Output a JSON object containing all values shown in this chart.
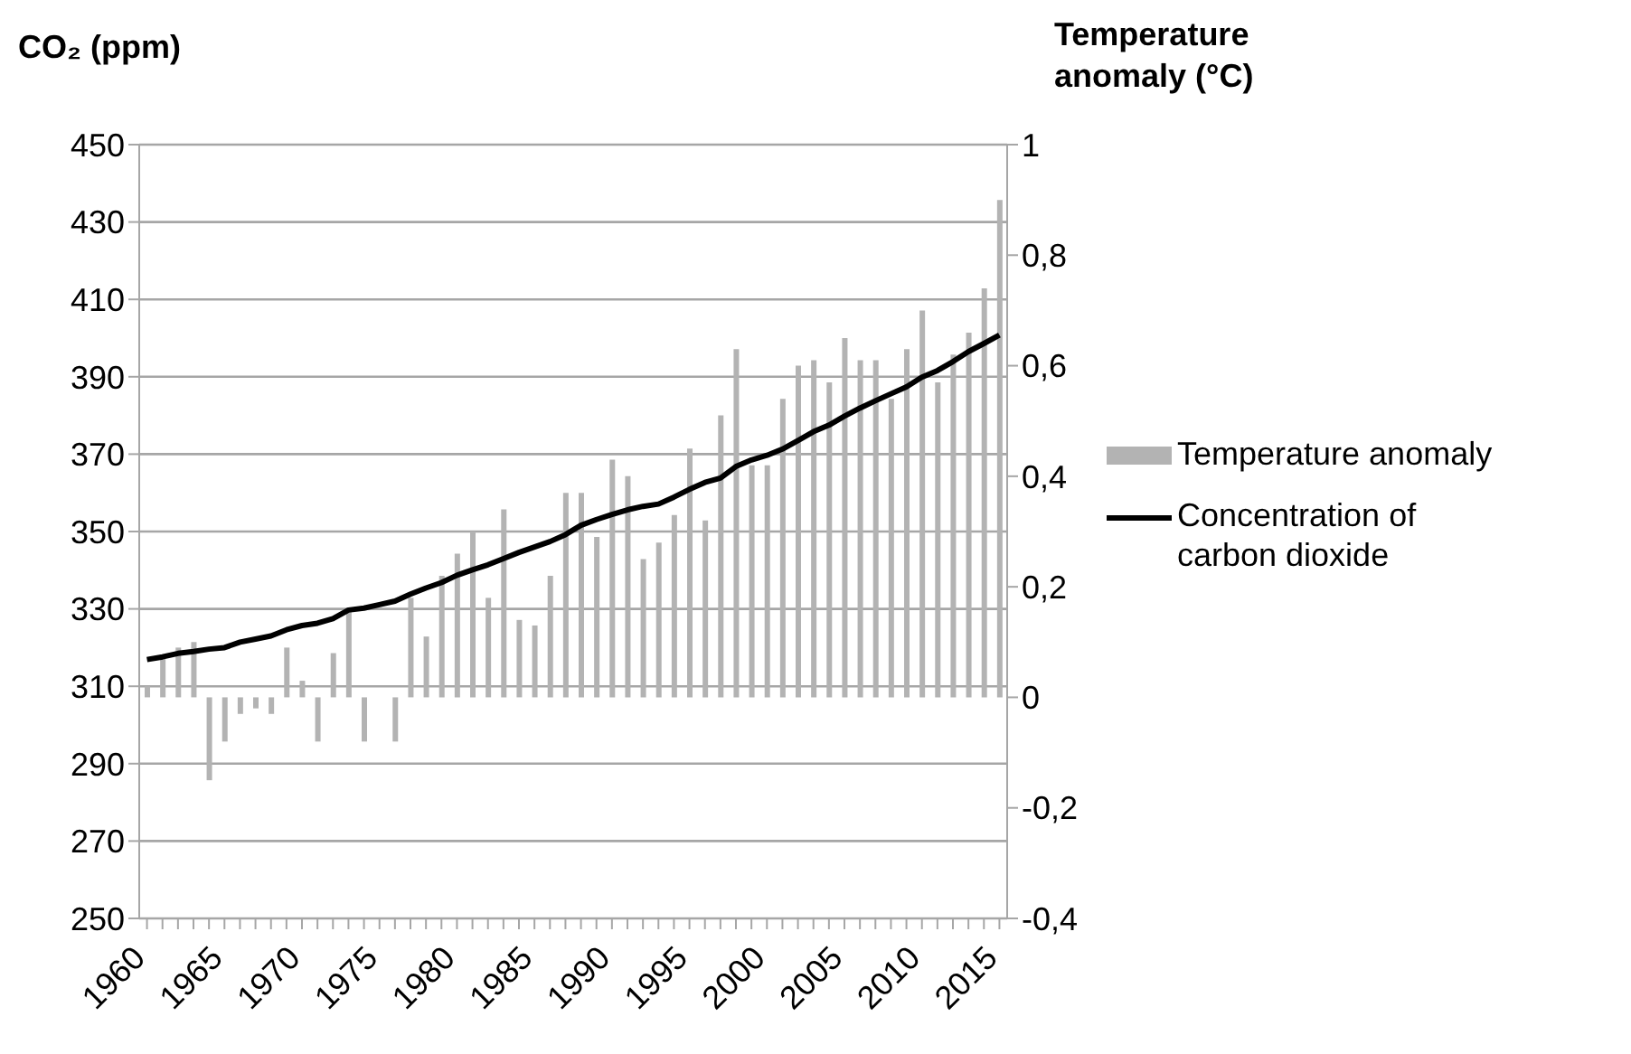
{
  "chart_data": {
    "type": "bar",
    "ylabel": "CO₂ (ppm)",
    "y2label": "Temperature anomaly (°C)",
    "categories": [
      "1960",
      null,
      null,
      null,
      null,
      "1965",
      null,
      null,
      null,
      null,
      "1970",
      null,
      null,
      null,
      null,
      "1975",
      null,
      null,
      null,
      null,
      "1980",
      null,
      null,
      null,
      null,
      "1985",
      null,
      null,
      null,
      null,
      "1990",
      null,
      null,
      null,
      null,
      "1995",
      null,
      null,
      null,
      null,
      "2000",
      null,
      null,
      null,
      null,
      "2005",
      null,
      null,
      null,
      null,
      "2010",
      null,
      null,
      null,
      null,
      "2015"
    ],
    "series": [
      {
        "name": "Temperature anomaly",
        "axis": "y2",
        "color": "#b3b3b3",
        "values": [
          0.02,
          0.07,
          0.09,
          0.1,
          -0.15,
          -0.08,
          -0.03,
          -0.02,
          -0.03,
          0.09,
          0.03,
          -0.08,
          0.08,
          0.16,
          -0.08,
          0,
          -0.08,
          0.18,
          0.11,
          0.22,
          0.26,
          0.3,
          0.18,
          0.34,
          0.14,
          0.13,
          0.22,
          0.37,
          0.37,
          0.29,
          0.43,
          0.4,
          0.25,
          0.28,
          0.33,
          0.45,
          0.32,
          0.51,
          0.63,
          0.42,
          0.42,
          0.54,
          0.6,
          0.61,
          0.57,
          0.65,
          0.61,
          0.61,
          0.54,
          0.63,
          0.7,
          0.57,
          0.62,
          0.66,
          0.74,
          0.9
        ]
      },
      {
        "name": "Concentration of carbon dioxide",
        "type": "line",
        "color": "#000000",
        "values": [
          316.9,
          317.6,
          318.5,
          319,
          319.6,
          320,
          321.4,
          322.2,
          323,
          324.6,
          325.7,
          326.3,
          327.5,
          329.7,
          330.2,
          331.1,
          332,
          333.8,
          335.4,
          336.8,
          338.7,
          340.1,
          341.4,
          343,
          344.6,
          346,
          347.4,
          349.2,
          351.6,
          353.1,
          354.4,
          355.6,
          356.5,
          357.1,
          358.9,
          360.9,
          362.7,
          363.8,
          366.8,
          368.5,
          369.7,
          371.3,
          373.5,
          375.8,
          377.5,
          379.8,
          381.9,
          383.8,
          385.6,
          387.4,
          389.9,
          391.6,
          393.9,
          396.5,
          398.6,
          400.8
        ]
      }
    ],
    "ylim": [
      250,
      450
    ],
    "yticks": [
      250,
      270,
      290,
      310,
      330,
      350,
      370,
      390,
      410,
      430,
      450
    ],
    "y2lim": [
      -0.4,
      1
    ],
    "y2ticks": [
      {
        "value": -0.4,
        "label": "-0,4"
      },
      {
        "value": -0.2,
        "label": "-0,2"
      },
      0,
      {
        "value": 0.2,
        "label": "0,2"
      },
      {
        "value": 0.4,
        "label": "0,4"
      },
      {
        "value": 0.6,
        "label": "0,6"
      },
      {
        "value": 0.8,
        "label": "0,8"
      },
      1
    ],
    "grid": "y",
    "legend": "right"
  }
}
